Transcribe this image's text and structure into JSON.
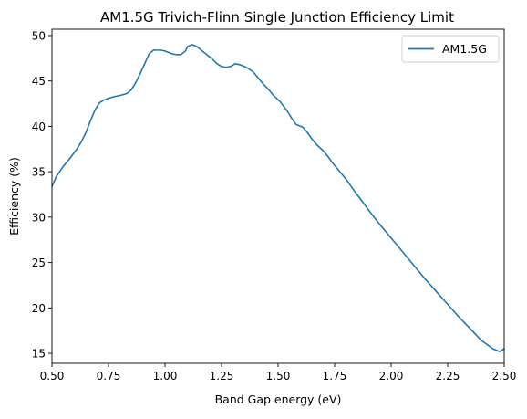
{
  "chart_data": {
    "type": "line",
    "title": "AM1.5G Trivich-Flinn Single Junction Efficiency Limit",
    "xlabel": "Band Gap energy (eV)",
    "ylabel": "Efficiency (%)",
    "xlim": [
      0.5,
      2.5
    ],
    "ylim": [
      13.9,
      50.7
    ],
    "xticks": [
      0.5,
      0.75,
      1.0,
      1.25,
      1.5,
      1.75,
      2.0,
      2.25,
      2.5
    ],
    "xtick_labels": [
      "0.50",
      "0.75",
      "1.00",
      "1.25",
      "1.50",
      "1.75",
      "2.00",
      "2.25",
      "2.50"
    ],
    "yticks": [
      15,
      20,
      25,
      30,
      35,
      40,
      45,
      50
    ],
    "ytick_labels": [
      "15",
      "20",
      "25",
      "30",
      "35",
      "40",
      "45",
      "50"
    ],
    "grid": false,
    "legend_position": "top-right",
    "series": [
      {
        "name": "AM1.5G",
        "color": "#1f77b4",
        "x": [
          0.5,
          0.52,
          0.55,
          0.58,
          0.61,
          0.63,
          0.65,
          0.67,
          0.69,
          0.71,
          0.73,
          0.75,
          0.78,
          0.8,
          0.83,
          0.85,
          0.87,
          0.89,
          0.91,
          0.93,
          0.95,
          0.98,
          1.0,
          1.03,
          1.05,
          1.07,
          1.09,
          1.1,
          1.12,
          1.14,
          1.16,
          1.18,
          1.21,
          1.23,
          1.25,
          1.27,
          1.29,
          1.31,
          1.33,
          1.36,
          1.39,
          1.41,
          1.43,
          1.46,
          1.48,
          1.51,
          1.54,
          1.56,
          1.58,
          1.61,
          1.63,
          1.65,
          1.67,
          1.7,
          1.72,
          1.74,
          1.77,
          1.8,
          1.82,
          1.84,
          1.87,
          1.9,
          1.94,
          2.0,
          2.05,
          2.1,
          2.15,
          2.2,
          2.25,
          2.3,
          2.35,
          2.4,
          2.45,
          2.48,
          2.5
        ],
        "y": [
          33.4,
          34.5,
          35.6,
          36.5,
          37.5,
          38.3,
          39.3,
          40.6,
          41.8,
          42.6,
          42.9,
          43.1,
          43.3,
          43.4,
          43.6,
          44.0,
          44.8,
          45.8,
          46.9,
          48.0,
          48.4,
          48.4,
          48.3,
          48.0,
          47.9,
          47.9,
          48.3,
          48.8,
          49.0,
          48.8,
          48.4,
          48.0,
          47.4,
          46.9,
          46.6,
          46.5,
          46.6,
          46.9,
          46.8,
          46.5,
          46.0,
          45.4,
          44.8,
          44.0,
          43.4,
          42.7,
          41.7,
          40.9,
          40.2,
          39.9,
          39.3,
          38.6,
          38.0,
          37.3,
          36.7,
          36.0,
          35.1,
          34.2,
          33.5,
          32.8,
          31.8,
          30.8,
          29.5,
          27.7,
          26.2,
          24.7,
          23.2,
          21.8,
          20.4,
          19.0,
          17.7,
          16.4,
          15.5,
          15.2,
          15.5
        ]
      }
    ]
  }
}
